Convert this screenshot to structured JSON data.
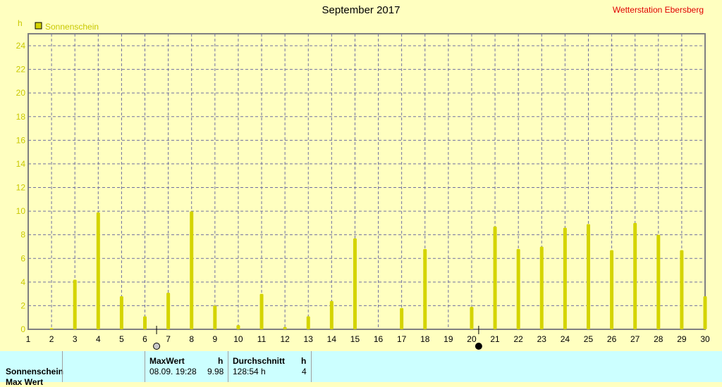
{
  "chart_data": {
    "type": "bar",
    "title": "September 2017",
    "station": "Wetterstation Ebersberg",
    "ylabel": "h",
    "ylim": [
      0,
      25
    ],
    "yticks": [
      0,
      2,
      4,
      6,
      8,
      10,
      12,
      14,
      16,
      18,
      20,
      22,
      24
    ],
    "grid": true,
    "legend_placement": "top-left",
    "categories": [
      "1",
      "2",
      "3",
      "4",
      "5",
      "6",
      "7",
      "8",
      "9",
      "10",
      "11",
      "12",
      "13",
      "14",
      "15",
      "16",
      "17",
      "18",
      "19",
      "20",
      "21",
      "22",
      "23",
      "24",
      "25",
      "26",
      "27",
      "28",
      "29",
      "30"
    ],
    "series": [
      {
        "name": "Sonnenschein",
        "color": "#d4d400",
        "values": [
          0,
          0.1,
          4.2,
          9.9,
          2.8,
          1.1,
          3.1,
          9.98,
          2.0,
          0.35,
          3.0,
          0.2,
          1.1,
          2.4,
          7.7,
          0,
          1.8,
          6.8,
          0,
          1.9,
          8.7,
          6.8,
          7.0,
          8.6,
          8.9,
          6.7,
          9.0,
          8.0,
          6.7,
          2.8
        ]
      }
    ],
    "moon_markers": [
      {
        "type": "full-moon",
        "day": 6.5
      },
      {
        "type": "new-moon",
        "day": 20.3
      }
    ]
  },
  "table": {
    "row_label": "Sonnenschein",
    "row2_label": "Max Wert",
    "max_header": "MaxWert",
    "max_unit": "h",
    "max_time": "08.09.  19:28",
    "max_value": "9.98",
    "avg_header": "Durchschnitt",
    "avg_unit": "h",
    "avg_value": "128:54 h",
    "avg_count": "4"
  }
}
